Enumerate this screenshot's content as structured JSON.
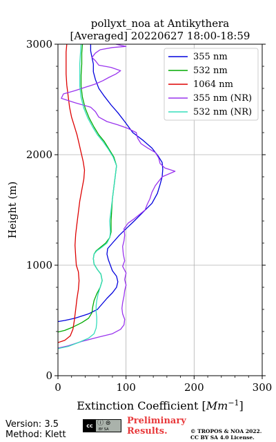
{
  "chart_data": {
    "type": "line",
    "title_line1": "pollyxt_noa at Antikythera",
    "title_line2": "[Averaged] 20220627 18:00-18:59",
    "xlabel": "Extinction Coefficient [Mm⁻¹]",
    "ylabel": "Height (m)",
    "xlim": [
      0,
      300
    ],
    "ylim": [
      0,
      3000
    ],
    "xticks": [
      0,
      100,
      200,
      300
    ],
    "yticks": [
      0,
      1000,
      2000,
      3000
    ],
    "grid": true,
    "legend_position": "top-right",
    "series": [
      {
        "name": "355 nm",
        "color": "#0000dd",
        "points": [
          [
            0,
            490
          ],
          [
            10,
            500
          ],
          [
            25,
            520
          ],
          [
            45,
            560
          ],
          [
            58,
            600
          ],
          [
            65,
            650
          ],
          [
            72,
            700
          ],
          [
            80,
            750
          ],
          [
            86,
            800
          ],
          [
            88,
            850
          ],
          [
            86,
            900
          ],
          [
            80,
            950
          ],
          [
            74,
            1050
          ],
          [
            72,
            1100
          ],
          [
            73,
            1150
          ],
          [
            80,
            1200
          ],
          [
            90,
            1270
          ],
          [
            100,
            1330
          ],
          [
            112,
            1400
          ],
          [
            125,
            1480
          ],
          [
            138,
            1560
          ],
          [
            146,
            1650
          ],
          [
            150,
            1730
          ],
          [
            153,
            1800
          ],
          [
            154,
            1870
          ],
          [
            153,
            1930
          ],
          [
            147,
            1990
          ],
          [
            138,
            2060
          ],
          [
            125,
            2130
          ],
          [
            110,
            2200
          ],
          [
            98,
            2300
          ],
          [
            88,
            2380
          ],
          [
            78,
            2450
          ],
          [
            68,
            2530
          ],
          [
            60,
            2600
          ],
          [
            55,
            2680
          ],
          [
            52,
            2750
          ],
          [
            52,
            2820
          ],
          [
            50,
            2880
          ],
          [
            48,
            2940
          ],
          [
            48,
            3000
          ]
        ]
      },
      {
        "name": "532 nm",
        "color": "#00aa00",
        "points": [
          [
            0,
            395
          ],
          [
            10,
            410
          ],
          [
            22,
            440
          ],
          [
            35,
            480
          ],
          [
            45,
            520
          ],
          [
            50,
            570
          ],
          [
            51,
            620
          ],
          [
            53,
            680
          ],
          [
            57,
            740
          ],
          [
            62,
            800
          ],
          [
            65,
            860
          ],
          [
            63,
            920
          ],
          [
            58,
            960
          ],
          [
            53,
            1010
          ],
          [
            52,
            1060
          ],
          [
            53,
            1100
          ],
          [
            56,
            1130
          ],
          [
            62,
            1160
          ],
          [
            70,
            1200
          ],
          [
            76,
            1250
          ],
          [
            78,
            1300
          ],
          [
            78,
            1400
          ],
          [
            79,
            1500
          ],
          [
            80,
            1600
          ],
          [
            82,
            1700
          ],
          [
            84,
            1800
          ],
          [
            86,
            1900
          ],
          [
            82,
            1980
          ],
          [
            75,
            2050
          ],
          [
            68,
            2120
          ],
          [
            60,
            2180
          ],
          [
            53,
            2250
          ],
          [
            46,
            2330
          ],
          [
            40,
            2420
          ],
          [
            36,
            2520
          ],
          [
            34,
            2620
          ],
          [
            34,
            2720
          ],
          [
            35,
            2820
          ],
          [
            35,
            2920
          ],
          [
            36,
            3000
          ]
        ]
      },
      {
        "name": "1064 nm",
        "color": "#dd0000",
        "points": [
          [
            0,
            300
          ],
          [
            10,
            320
          ],
          [
            18,
            360
          ],
          [
            22,
            420
          ],
          [
            24,
            500
          ],
          [
            26,
            600
          ],
          [
            28,
            700
          ],
          [
            30,
            780
          ],
          [
            31,
            860
          ],
          [
            30,
            940
          ],
          [
            27,
            1000
          ],
          [
            26,
            1080
          ],
          [
            25,
            1180
          ],
          [
            26,
            1280
          ],
          [
            28,
            1380
          ],
          [
            30,
            1480
          ],
          [
            32,
            1580
          ],
          [
            35,
            1680
          ],
          [
            38,
            1780
          ],
          [
            39,
            1860
          ],
          [
            37,
            1940
          ],
          [
            34,
            2020
          ],
          [
            31,
            2100
          ],
          [
            28,
            2180
          ],
          [
            24,
            2260
          ],
          [
            20,
            2340
          ],
          [
            17,
            2430
          ],
          [
            15,
            2530
          ],
          [
            13,
            2630
          ],
          [
            12,
            2730
          ],
          [
            12,
            2830
          ],
          [
            12,
            2930
          ],
          [
            13,
            3000
          ]
        ]
      },
      {
        "name": "355 nm (NR)",
        "color": "#9933ee",
        "points": [
          [
            0,
            250
          ],
          [
            15,
            270
          ],
          [
            35,
            310
          ],
          [
            60,
            350
          ],
          [
            80,
            380
          ],
          [
            92,
            420
          ],
          [
            97,
            460
          ],
          [
            98,
            510
          ],
          [
            95,
            560
          ],
          [
            94,
            610
          ],
          [
            95,
            660
          ],
          [
            97,
            720
          ],
          [
            98,
            770
          ],
          [
            100,
            820
          ],
          [
            98,
            870
          ],
          [
            100,
            930
          ],
          [
            95,
            990
          ],
          [
            98,
            1040
          ],
          [
            96,
            1100
          ],
          [
            95,
            1170
          ],
          [
            97,
            1220
          ],
          [
            98,
            1270
          ],
          [
            97,
            1330
          ],
          [
            103,
            1380
          ],
          [
            112,
            1420
          ],
          [
            120,
            1460
          ],
          [
            128,
            1500
          ],
          [
            131,
            1550
          ],
          [
            135,
            1600
          ],
          [
            138,
            1660
          ],
          [
            143,
            1720
          ],
          [
            153,
            1800
          ],
          [
            172,
            1850
          ],
          [
            157,
            1880
          ],
          [
            150,
            1920
          ],
          [
            148,
            1970
          ],
          [
            143,
            2020
          ],
          [
            132,
            2060
          ],
          [
            122,
            2100
          ],
          [
            117,
            2150
          ],
          [
            115,
            2200
          ],
          [
            102,
            2240
          ],
          [
            88,
            2270
          ],
          [
            72,
            2300
          ],
          [
            60,
            2340
          ],
          [
            55,
            2390
          ],
          [
            48,
            2430
          ],
          [
            25,
            2470
          ],
          [
            5,
            2510
          ],
          [
            8,
            2550
          ],
          [
            25,
            2580
          ],
          [
            40,
            2610
          ],
          [
            55,
            2640
          ],
          [
            66,
            2670
          ],
          [
            75,
            2700
          ],
          [
            85,
            2730
          ],
          [
            92,
            2760
          ],
          [
            78,
            2790
          ],
          [
            60,
            2810
          ],
          [
            55,
            2850
          ],
          [
            50,
            2880
          ],
          [
            55,
            2920
          ],
          [
            62,
            2950
          ],
          [
            80,
            2970
          ],
          [
            100,
            2980
          ],
          [
            85,
            3000
          ]
        ]
      },
      {
        "name": "532 nm (NR)",
        "color": "#33ddbb",
        "points": [
          [
            0,
            245
          ],
          [
            15,
            265
          ],
          [
            30,
            300
          ],
          [
            45,
            340
          ],
          [
            53,
            380
          ],
          [
            56,
            430
          ],
          [
            57,
            480
          ],
          [
            57,
            530
          ],
          [
            56,
            580
          ],
          [
            56,
            630
          ],
          [
            57,
            680
          ],
          [
            59,
            740
          ],
          [
            62,
            800
          ],
          [
            65,
            860
          ],
          [
            63,
            920
          ],
          [
            58,
            960
          ],
          [
            53,
            1010
          ],
          [
            52,
            1060
          ],
          [
            53,
            1100
          ],
          [
            57,
            1130
          ],
          [
            64,
            1160
          ],
          [
            72,
            1200
          ],
          [
            76,
            1250
          ],
          [
            77,
            1300
          ],
          [
            76,
            1400
          ],
          [
            78,
            1500
          ],
          [
            80,
            1600
          ],
          [
            82,
            1700
          ],
          [
            84,
            1800
          ],
          [
            86,
            1900
          ],
          [
            81,
            1980
          ],
          [
            74,
            2050
          ],
          [
            66,
            2120
          ],
          [
            58,
            2180
          ],
          [
            51,
            2250
          ],
          [
            44,
            2330
          ],
          [
            38,
            2420
          ],
          [
            34,
            2520
          ],
          [
            32,
            2620
          ],
          [
            32,
            2720
          ],
          [
            32,
            2820
          ],
          [
            33,
            2920
          ],
          [
            34,
            3000
          ]
        ]
      }
    ]
  },
  "footer": {
    "version": "Version: 3.5",
    "method": "Method: Klett",
    "cc_left": "cc",
    "cc_icons": "ⓘ ⊜",
    "cc_sub": "BY   SA",
    "preliminary_line1": "Preliminary",
    "preliminary_line2": "Results.",
    "copyright_line1": "© TROPOS & NOA 2022.",
    "copyright_line2": "CC BY SA 4.0 License."
  }
}
